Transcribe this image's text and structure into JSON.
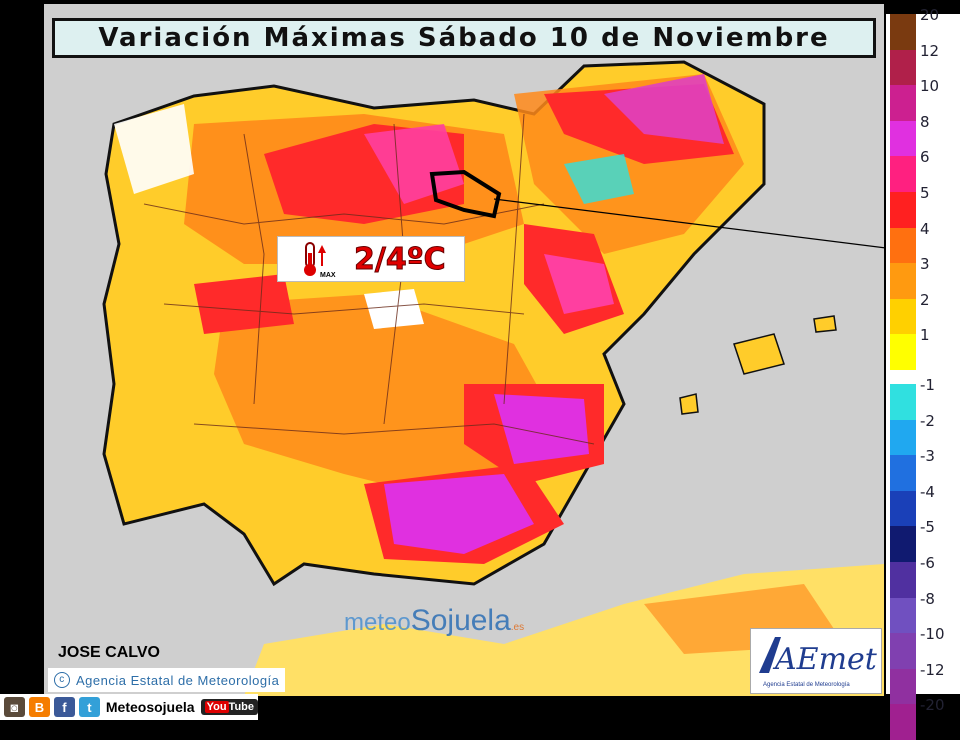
{
  "title": "Variación Máximas Sábado 10 de Noviembre",
  "badge": {
    "value": "2/4ºC",
    "icon_label": "MAX",
    "icon": "thermometer-up-icon"
  },
  "author": "JOSE CALVO",
  "agency_line": "Agencia Estatal de Meteorología",
  "logo": {
    "name": "AEmet",
    "sub": "Agencia Estatal de Meteorología"
  },
  "watermark": {
    "part1": "meteo",
    "part2": "Sojuela",
    "tld": ".es"
  },
  "social": {
    "handle": "Meteosojuela",
    "icons": [
      "instagram-icon",
      "blogger-icon",
      "facebook-icon",
      "twitter-icon",
      "youtube-icon"
    ],
    "youtube": "You",
    "youtube2": "Tube"
  },
  "legend": [
    {
      "label": "20",
      "color": "#7a3a10"
    },
    {
      "label": "12",
      "color": "#b0204a"
    },
    {
      "label": "10",
      "color": "#cc2090"
    },
    {
      "label": "8",
      "color": "#e030e0"
    },
    {
      "label": "6",
      "color": "#ff2080"
    },
    {
      "label": "5",
      "color": "#ff2020"
    },
    {
      "label": "4",
      "color": "#ff7010"
    },
    {
      "label": "3",
      "color": "#ff9a10"
    },
    {
      "label": "2",
      "color": "#ffd000"
    },
    {
      "label": "1",
      "color": "#ffff00"
    },
    {
      "label": "-1",
      "color": "#30e0e0"
    },
    {
      "label": "-2",
      "color": "#20a8f0"
    },
    {
      "label": "-3",
      "color": "#2070e0"
    },
    {
      "label": "-4",
      "color": "#1a40b8"
    },
    {
      "label": "-5",
      "color": "#101a70"
    },
    {
      "label": "-6",
      "color": "#5030a0"
    },
    {
      "label": "-8",
      "color": "#7050c0"
    },
    {
      "label": "-10",
      "color": "#8040b0"
    },
    {
      "label": "-12",
      "color": "#9030a0"
    },
    {
      "label": "-20",
      "color": "#a02090"
    }
  ]
}
